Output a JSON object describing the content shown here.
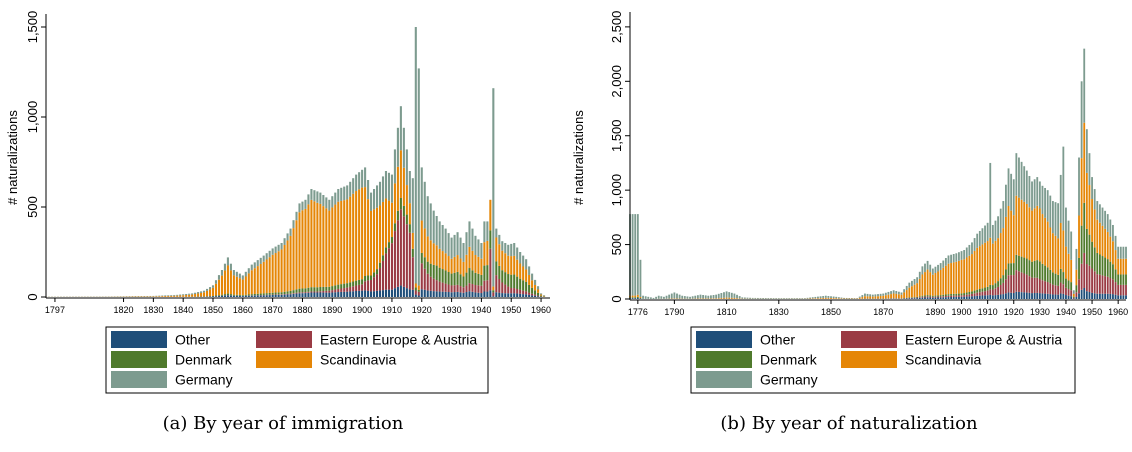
{
  "colors": {
    "Other": "#1f4e79",
    "Eastern Europe & Austria": "#9a3b44",
    "Denmark": "#4f7a2c",
    "Scandinavia": "#e58606",
    "Germany": "#7d9b8f"
  },
  "chart_data": [
    {
      "type": "bar",
      "stacked": true,
      "caption_label": "(a)",
      "caption": "By year of immigration",
      "ylabel": "# naturalizations",
      "ylim": [
        0,
        1550
      ],
      "y_ticks": [
        0,
        500,
        1000,
        1500
      ],
      "y_tick_labels": [
        "0",
        "500",
        "1,000",
        "1,500"
      ],
      "xlim": [
        1794,
        1963
      ],
      "x_ticks": [
        1797,
        1820,
        1830,
        1840,
        1850,
        1860,
        1870,
        1880,
        1890,
        1900,
        1910,
        1920,
        1930,
        1940,
        1950,
        1960
      ],
      "grid": false,
      "legend_position": "bottom",
      "legend": [
        "Other",
        "Eastern Europe & Austria",
        "Denmark",
        "Scandinavia",
        "Germany"
      ],
      "series_names": [
        "Other",
        "Eastern Europe & Austria",
        "Denmark",
        "Scandinavia",
        "Germany"
      ],
      "stack_order": [
        "Other",
        "Eastern Europe & Austria",
        "Denmark",
        "Scandinavia",
        "Germany"
      ],
      "anchors": {
        "total": [
          [
            1797,
            2
          ],
          [
            1815,
            3
          ],
          [
            1830,
            6
          ],
          [
            1838,
            12
          ],
          [
            1843,
            20
          ],
          [
            1847,
            35
          ],
          [
            1850,
            65
          ],
          [
            1853,
            150
          ],
          [
            1855,
            220
          ],
          [
            1857,
            150
          ],
          [
            1860,
            120
          ],
          [
            1863,
            180
          ],
          [
            1867,
            230
          ],
          [
            1870,
            270
          ],
          [
            1873,
            300
          ],
          [
            1876,
            380
          ],
          [
            1879,
            520
          ],
          [
            1881,
            540
          ],
          [
            1883,
            600
          ],
          [
            1886,
            580
          ],
          [
            1889,
            540
          ],
          [
            1892,
            600
          ],
          [
            1895,
            620
          ],
          [
            1898,
            680
          ],
          [
            1901,
            720
          ],
          [
            1903,
            580
          ],
          [
            1906,
            640
          ],
          [
            1908,
            700
          ],
          [
            1910,
            680
          ],
          [
            1911,
            820
          ],
          [
            1913,
            1060
          ],
          [
            1915,
            820
          ],
          [
            1916,
            700
          ],
          [
            1917,
            660
          ],
          [
            1918,
            1500
          ],
          [
            1919,
            1270
          ],
          [
            1920,
            720
          ],
          [
            1922,
            560
          ],
          [
            1924,
            480
          ],
          [
            1926,
            420
          ],
          [
            1928,
            380
          ],
          [
            1930,
            330
          ],
          [
            1932,
            360
          ],
          [
            1934,
            300
          ],
          [
            1936,
            420
          ],
          [
            1938,
            340
          ],
          [
            1940,
            300
          ],
          [
            1941,
            420
          ],
          [
            1942,
            420
          ],
          [
            1943,
            540
          ],
          [
            1944,
            1160
          ],
          [
            1945,
            380
          ],
          [
            1947,
            310
          ],
          [
            1949,
            290
          ],
          [
            1951,
            300
          ],
          [
            1953,
            250
          ],
          [
            1955,
            210
          ],
          [
            1957,
            130
          ],
          [
            1959,
            60
          ],
          [
            1960,
            20
          ],
          [
            1962,
            0
          ]
        ],
        "Scandinavia": [
          [
            1797,
            0.4
          ],
          [
            1840,
            0.55
          ],
          [
            1850,
            0.7
          ],
          [
            1860,
            0.72
          ],
          [
            1870,
            0.78
          ],
          [
            1880,
            0.82
          ],
          [
            1890,
            0.78
          ],
          [
            1900,
            0.72
          ],
          [
            1905,
            0.55
          ],
          [
            1910,
            0.28
          ],
          [
            1913,
            0.25
          ],
          [
            1915,
            0.2
          ],
          [
            1918,
            0.1
          ],
          [
            1920,
            0.25
          ],
          [
            1925,
            0.25
          ],
          [
            1930,
            0.25
          ],
          [
            1940,
            0.3
          ],
          [
            1945,
            0.35
          ],
          [
            1950,
            0.35
          ],
          [
            1962,
            0.3
          ]
        ],
        "Other": [
          [
            1797,
            0.05
          ],
          [
            1880,
            0.04
          ],
          [
            1900,
            0.05
          ],
          [
            1910,
            0.06
          ],
          [
            1920,
            0.06
          ],
          [
            1930,
            0.08
          ],
          [
            1945,
            0.07
          ],
          [
            1962,
            0.07
          ]
        ],
        "Eastern Europe & Austria": [
          [
            1797,
            0
          ],
          [
            1885,
            0.01
          ],
          [
            1900,
            0.05
          ],
          [
            1905,
            0.15
          ],
          [
            1910,
            0.38
          ],
          [
            1913,
            0.4
          ],
          [
            1916,
            0.45
          ],
          [
            1918,
            0.1
          ],
          [
            1920,
            0.2
          ],
          [
            1923,
            0.15
          ],
          [
            1928,
            0.12
          ],
          [
            1935,
            0.1
          ],
          [
            1942,
            0.15
          ],
          [
            1943,
            0.45
          ],
          [
            1945,
            0.25
          ],
          [
            1950,
            0.1
          ],
          [
            1962,
            0.05
          ]
        ],
        "Denmark": [
          [
            1797,
            0.03
          ],
          [
            1880,
            0.04
          ],
          [
            1900,
            0.04
          ],
          [
            1910,
            0.05
          ],
          [
            1920,
            0.08
          ],
          [
            1925,
            0.18
          ],
          [
            1930,
            0.2
          ],
          [
            1938,
            0.2
          ],
          [
            1943,
            0.2
          ],
          [
            1945,
            0.2
          ],
          [
            1950,
            0.25
          ],
          [
            1955,
            0.25
          ],
          [
            1962,
            0.25
          ]
        ]
      },
      "spikes": [
        [
          1918,
          0.95,
          "Germany"
        ],
        [
          1919,
          0.95,
          "Germany"
        ],
        [
          1944,
          0.95,
          "Germany"
        ]
      ]
    },
    {
      "type": "bar",
      "stacked": true,
      "caption_label": "(b)",
      "caption": "By year of naturalization",
      "ylabel": "# naturalizations",
      "ylim": [
        0,
        2600
      ],
      "y_ticks": [
        0,
        500,
        1000,
        1500,
        2000,
        2500
      ],
      "y_tick_labels": [
        "0",
        "500",
        "1,000",
        "1,500",
        "2,000",
        "2,500"
      ],
      "xlim": [
        1773,
        1963
      ],
      "x_ticks": [
        1776,
        1790,
        1810,
        1830,
        1850,
        1870,
        1890,
        1900,
        1910,
        1920,
        1930,
        1940,
        1950,
        1960
      ],
      "grid": false,
      "legend_position": "bottom",
      "legend": [
        "Other",
        "Eastern Europe & Austria",
        "Denmark",
        "Scandinavia",
        "Germany"
      ],
      "series_names": [
        "Other",
        "Eastern Europe & Austria",
        "Denmark",
        "Scandinavia",
        "Germany"
      ],
      "stack_order": [
        "Other",
        "Eastern Europe & Austria",
        "Denmark",
        "Scandinavia",
        "Germany"
      ],
      "anchors": {
        "total": [
          [
            1776,
            780
          ],
          [
            1777,
            360
          ],
          [
            1778,
            30
          ],
          [
            1782,
            10
          ],
          [
            1784,
            30
          ],
          [
            1786,
            20
          ],
          [
            1788,
            40
          ],
          [
            1790,
            60
          ],
          [
            1793,
            30
          ],
          [
            1796,
            20
          ],
          [
            1800,
            40
          ],
          [
            1803,
            30
          ],
          [
            1806,
            40
          ],
          [
            1810,
            70
          ],
          [
            1813,
            50
          ],
          [
            1816,
            15
          ],
          [
            1820,
            10
          ],
          [
            1830,
            8
          ],
          [
            1840,
            8
          ],
          [
            1848,
            30
          ],
          [
            1852,
            20
          ],
          [
            1855,
            10
          ],
          [
            1860,
            8
          ],
          [
            1863,
            50
          ],
          [
            1866,
            40
          ],
          [
            1870,
            50
          ],
          [
            1874,
            80
          ],
          [
            1877,
            60
          ],
          [
            1880,
            150
          ],
          [
            1883,
            200
          ],
          [
            1885,
            300
          ],
          [
            1887,
            350
          ],
          [
            1889,
            280
          ],
          [
            1892,
            330
          ],
          [
            1895,
            400
          ],
          [
            1898,
            420
          ],
          [
            1901,
            450
          ],
          [
            1904,
            520
          ],
          [
            1906,
            600
          ],
          [
            1908,
            650
          ],
          [
            1910,
            700
          ],
          [
            1911,
            1250
          ],
          [
            1912,
            680
          ],
          [
            1914,
            760
          ],
          [
            1916,
            900
          ],
          [
            1918,
            1200
          ],
          [
            1920,
            1100
          ],
          [
            1921,
            1340
          ],
          [
            1923,
            1260
          ],
          [
            1925,
            1180
          ],
          [
            1927,
            1080
          ],
          [
            1929,
            1120
          ],
          [
            1931,
            1040
          ],
          [
            1933,
            1000
          ],
          [
            1935,
            900
          ],
          [
            1937,
            880
          ],
          [
            1939,
            1400
          ],
          [
            1940,
            840
          ],
          [
            1941,
            720
          ],
          [
            1942,
            620
          ],
          [
            1943,
            80
          ],
          [
            1944,
            460
          ],
          [
            1945,
            1300
          ],
          [
            1946,
            2000
          ],
          [
            1947,
            2300
          ],
          [
            1948,
            1560
          ],
          [
            1950,
            1120
          ],
          [
            1952,
            900
          ],
          [
            1954,
            840
          ],
          [
            1956,
            780
          ],
          [
            1958,
            680
          ],
          [
            1960,
            480
          ]
        ],
        "Scandinavia": [
          [
            1776,
            0.02
          ],
          [
            1800,
            0.1
          ],
          [
            1850,
            0.3
          ],
          [
            1880,
            0.6
          ],
          [
            1890,
            0.7
          ],
          [
            1900,
            0.7
          ],
          [
            1910,
            0.6
          ],
          [
            1920,
            0.4
          ],
          [
            1930,
            0.45
          ],
          [
            1940,
            0.35
          ],
          [
            1945,
            0.3
          ],
          [
            1950,
            0.35
          ],
          [
            1960,
            0.3
          ]
        ],
        "Other": [
          [
            1776,
            0.01
          ],
          [
            1880,
            0.04
          ],
          [
            1910,
            0.05
          ],
          [
            1930,
            0.05
          ],
          [
            1945,
            0.04
          ],
          [
            1960,
            0.07
          ]
        ],
        "Eastern Europe & Austria": [
          [
            1776,
            0
          ],
          [
            1900,
            0.03
          ],
          [
            1910,
            0.06
          ],
          [
            1920,
            0.15
          ],
          [
            1925,
            0.14
          ],
          [
            1930,
            0.12
          ],
          [
            1940,
            0.08
          ],
          [
            1945,
            0.1
          ],
          [
            1950,
            0.2
          ],
          [
            1960,
            0.2
          ]
        ],
        "Denmark": [
          [
            1776,
            0.01
          ],
          [
            1880,
            0.03
          ],
          [
            1900,
            0.04
          ],
          [
            1910,
            0.05
          ],
          [
            1920,
            0.1
          ],
          [
            1930,
            0.15
          ],
          [
            1940,
            0.1
          ],
          [
            1945,
            0.15
          ],
          [
            1947,
            0.2
          ],
          [
            1950,
            0.22
          ],
          [
            1960,
            0.2
          ]
        ]
      },
      "spikes": [
        [
          1776,
          0.95,
          "Germany"
        ],
        [
          1777,
          0.95,
          "Germany"
        ],
        [
          1911,
          0.55,
          "Germany"
        ],
        [
          1939,
          0.55,
          "Germany"
        ]
      ]
    }
  ]
}
